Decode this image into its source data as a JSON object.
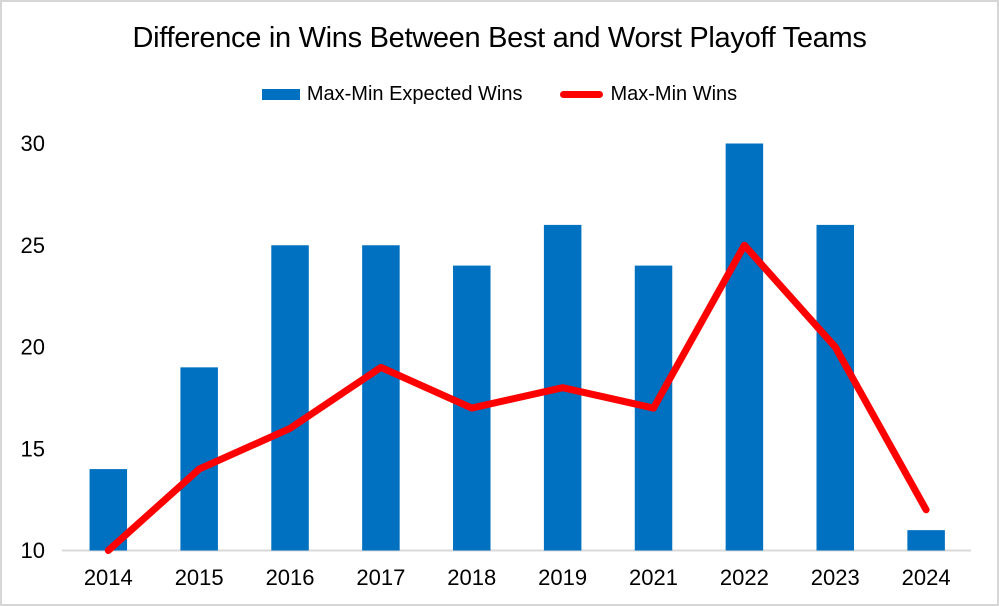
{
  "window": {
    "background": "#FFFFFF",
    "border_color": "#D6D6D6"
  },
  "chart_data": {
    "type": "combo",
    "title": "Difference in Wins Between Best and Worst Playoff Teams",
    "categories": [
      "2014",
      "2015",
      "2016",
      "2017",
      "2018",
      "2019",
      "2021",
      "2022",
      "2023",
      "2024"
    ],
    "series": [
      {
        "name": "Max-Min Expected Wins",
        "type": "bar",
        "color": "#0070C0",
        "values": [
          14,
          19,
          25,
          25,
          24,
          26,
          24,
          30,
          26,
          11
        ]
      },
      {
        "name": "Max-Min Wins",
        "type": "line",
        "color": "#FF0000",
        "values": [
          10,
          14,
          16,
          19,
          17,
          18,
          17,
          25,
          20,
          12
        ]
      }
    ],
    "ylim": [
      10,
      30
    ],
    "yticks": [
      10,
      15,
      20,
      25,
      30
    ],
    "grid": false,
    "legend_position": "top",
    "axis_color": "#D9D9D9",
    "text_color": "#000000",
    "xlabel": "",
    "ylabel": ""
  }
}
